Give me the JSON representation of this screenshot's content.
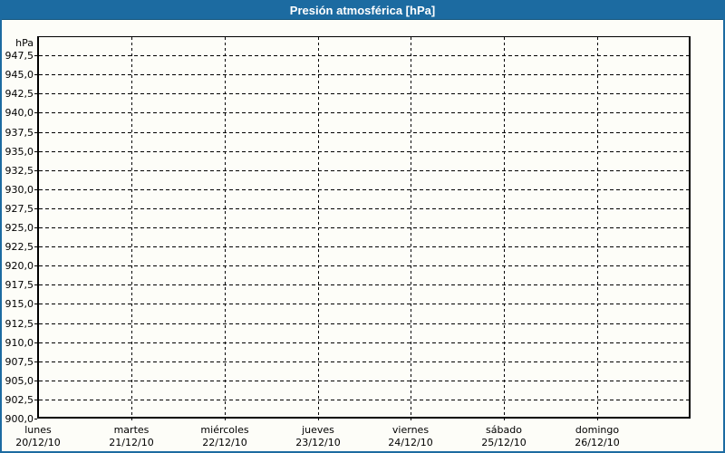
{
  "window": {
    "title": "Presión atmosférica [hPa]"
  },
  "colors": {
    "frame_and_titlebar": "#1c6ba1",
    "titlebar_text": "#ffffff",
    "background": "#fdfdf8",
    "grid_and_text": "#000000"
  },
  "y_axis": {
    "unit": "hPa"
  },
  "chart_data": {
    "type": "line",
    "title": "Presión atmosférica [hPa]",
    "ylabel": "hPa",
    "ylim": [
      900,
      950
    ],
    "ytick_step": 2.5,
    "grid": "dashed",
    "legend": "none",
    "series": [],
    "yticks": [
      {
        "label": "947,5",
        "value": 947.5
      },
      {
        "label": "945,0",
        "value": 945.0
      },
      {
        "label": "942,5",
        "value": 942.5
      },
      {
        "label": "940,0",
        "value": 940.0
      },
      {
        "label": "937,5",
        "value": 937.5
      },
      {
        "label": "935,0",
        "value": 935.0
      },
      {
        "label": "932,5",
        "value": 932.5
      },
      {
        "label": "930,0",
        "value": 930.0
      },
      {
        "label": "927,5",
        "value": 927.5
      },
      {
        "label": "925,0",
        "value": 925.0
      },
      {
        "label": "922,5",
        "value": 922.5
      },
      {
        "label": "920,0",
        "value": 920.0
      },
      {
        "label": "917,5",
        "value": 917.5
      },
      {
        "label": "915,0",
        "value": 915.0
      },
      {
        "label": "912,5",
        "value": 912.5
      },
      {
        "label": "910,0",
        "value": 910.0
      },
      {
        "label": "907,5",
        "value": 907.5
      },
      {
        "label": "905,0",
        "value": 905.0
      },
      {
        "label": "902,5",
        "value": 902.5
      },
      {
        "label": "900,0",
        "value": 900.0
      }
    ],
    "categories": [
      {
        "day": "lunes",
        "date": "20/12/10"
      },
      {
        "day": "martes",
        "date": "21/12/10"
      },
      {
        "day": "miércoles",
        "date": "22/12/10"
      },
      {
        "day": "jueves",
        "date": "23/12/10"
      },
      {
        "day": "viernes",
        "date": "24/12/10"
      },
      {
        "day": "sábado",
        "date": "25/12/10"
      },
      {
        "day": "domingo",
        "date": "26/12/10"
      }
    ]
  }
}
